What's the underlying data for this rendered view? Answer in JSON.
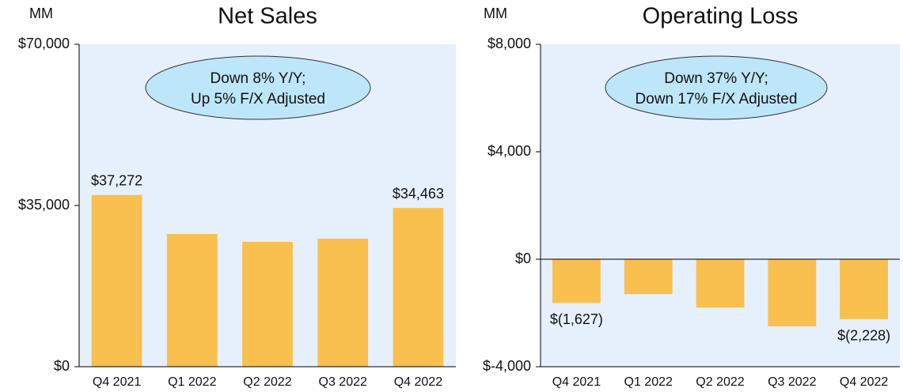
{
  "chart_data": [
    {
      "type": "bar",
      "title": "Net Sales",
      "y_label": "MM",
      "annotation": [
        "Down 8% Y/Y;",
        "Up 5% F/X Adjusted"
      ],
      "categories": [
        "Q4 2021",
        "Q1 2022",
        "Q2 2022",
        "Q3 2022",
        "Q4 2022"
      ],
      "values": [
        37272,
        28800,
        27100,
        27800,
        34463
      ],
      "value_labels": [
        "$37,272",
        null,
        null,
        null,
        "$34,463"
      ],
      "color": "#f9c04f",
      "ylim": [
        0,
        70000
      ],
      "yticks": [
        {
          "value": 0,
          "label": "$0"
        },
        {
          "value": 35000,
          "label": "$35,000"
        },
        {
          "value": 70000,
          "label": "$70,000"
        }
      ]
    },
    {
      "type": "bar",
      "title": "Operating Loss",
      "y_label": "MM",
      "annotation": [
        "Down 37% Y/Y;",
        "Down 17% F/X Adjusted"
      ],
      "categories": [
        "Q4 2021",
        "Q1 2022",
        "Q2 2022",
        "Q3 2022",
        "Q4 2022"
      ],
      "values": [
        -1627,
        -1300,
        -1800,
        -2500,
        -2228
      ],
      "value_labels": [
        "$(1,627)",
        null,
        null,
        null,
        "$(2,228)"
      ],
      "color": "#f9c04f",
      "ylim": [
        -4000,
        8000
      ],
      "yticks": [
        {
          "value": -4000,
          "label": "$-4,000"
        },
        {
          "value": 0,
          "label": "$0"
        },
        {
          "value": 4000,
          "label": "$4,000"
        },
        {
          "value": 8000,
          "label": "$8,000"
        }
      ]
    }
  ]
}
